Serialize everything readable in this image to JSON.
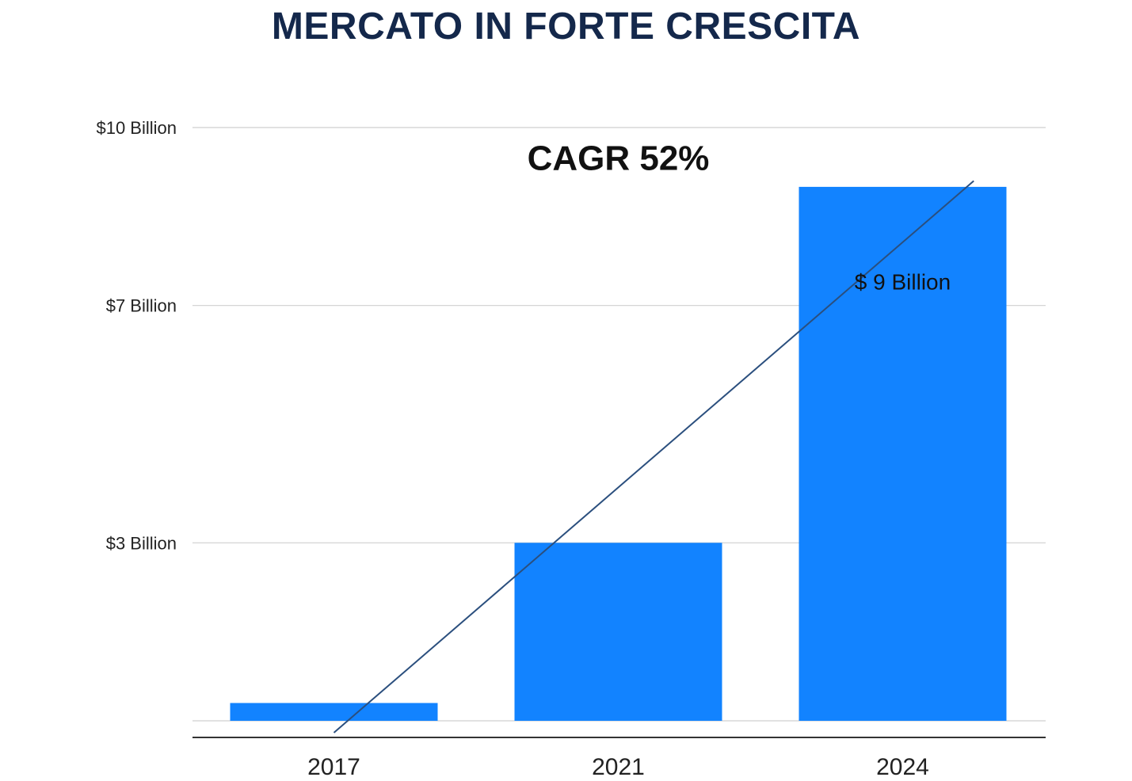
{
  "chart_data": {
    "type": "bar",
    "title": "MERCATO IN FORTE CRESCITA",
    "categories": [
      "2017",
      "2021",
      "2024"
    ],
    "values": [
      0.3,
      3.0,
      9.0
    ],
    "y_ticks": [
      {
        "value": 0,
        "label": ""
      },
      {
        "value": 3,
        "label": "$3 Billion"
      },
      {
        "value": 7,
        "label": "$7 Billion"
      },
      {
        "value": 10,
        "label": "$10 Billion"
      }
    ],
    "grid": true,
    "bar_color": "#1283ff",
    "trend_line": {
      "from": [
        0,
        -0.2
      ],
      "to": [
        2.25,
        9.1
      ],
      "color": "#2b4f7e"
    },
    "annotations": [
      {
        "text": "CAGR 52%",
        "category_pos": 1.0,
        "y": 9.5,
        "style": "bold"
      }
    ],
    "data_labels": [
      {
        "category": "2024",
        "text": "$ 9 Billion",
        "y": 7.4
      }
    ]
  }
}
